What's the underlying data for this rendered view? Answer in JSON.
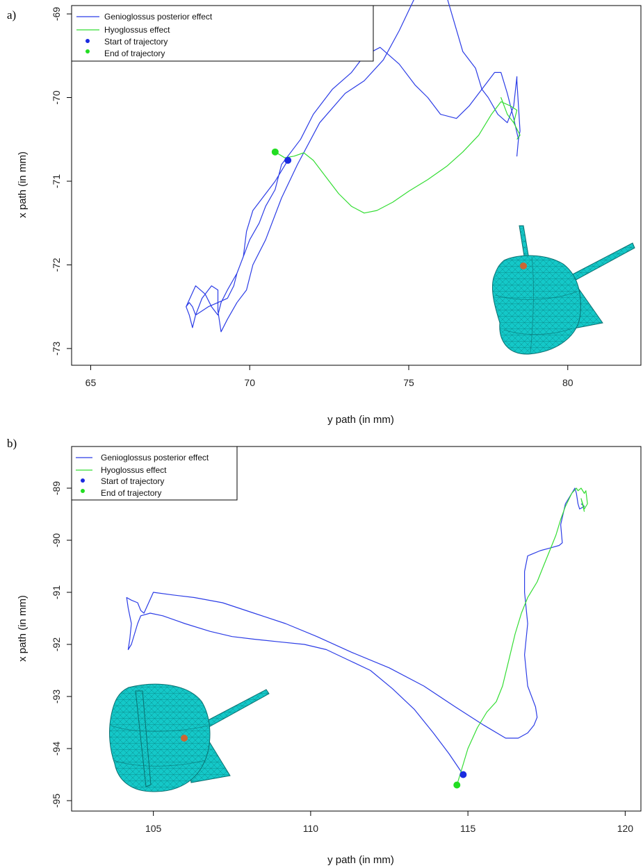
{
  "colors": {
    "genioglossus": "#2b3ce6",
    "hyoglossus": "#33dd33",
    "start": "#1a2be0",
    "end": "#22dd22",
    "mesh": "#14c8c8",
    "mesh_edge": "#0a6f70",
    "mesh_point": "#cc6633"
  },
  "icons": {
    "mesh": "tongue-mesh-icon"
  },
  "chart_data": [
    {
      "type": "line",
      "panel_label": "a)",
      "xlabel": "y path (in mm)",
      "ylabel": "x path (in mm)",
      "xlim": [
        64.4,
        82.3
      ],
      "ylim": [
        -73.2,
        -68.9
      ],
      "xticks": [
        65,
        70,
        75,
        80
      ],
      "yticks": [
        -69,
        -70,
        -71,
        -72,
        -73
      ],
      "grid": false,
      "legend_position": "top-left",
      "legend": [
        "Genioglossus posterior effect",
        "Hyoglossus effect",
        "Start of trajectory",
        "End of trajectory"
      ],
      "series": [
        {
          "name": "Genioglossus posterior effect",
          "x": [
            71.2,
            70.8,
            70.4,
            70.1,
            69.9,
            69.8,
            69.6,
            69.5,
            69.3,
            69.0,
            68.7,
            68.5,
            68.3,
            68.2,
            68.1,
            68.0,
            68.1,
            68.2,
            68.3,
            68.5,
            68.7,
            68.8,
            69.0,
            69.0,
            69.1,
            69.3,
            69.6,
            69.9,
            70.1,
            70.5,
            71.0,
            71.5,
            72.2,
            73.0,
            73.6,
            74.2,
            74.7,
            75.2,
            75.6,
            75.9,
            76.2,
            76.7,
            77.1,
            77.3,
            77.5,
            77.8,
            78.1,
            78.3,
            78.4,
            78.4,
            78.5,
            78.45,
            78.4,
            78.45,
            78.3,
            78.1,
            77.9,
            77.7,
            77.3,
            76.9,
            76.5,
            76.0,
            75.6,
            75.2,
            74.7,
            74.1,
            73.6,
            73.2,
            72.6,
            72.0,
            71.6,
            71.3,
            71.0,
            70.8,
            70.5,
            70.3,
            70.0,
            69.8,
            69.6,
            69.3,
            69.1,
            69.0,
            68.8,
            68.6,
            68.3,
            68.0
          ],
          "y": [
            -70.75,
            -71.0,
            -71.2,
            -71.35,
            -71.6,
            -71.9,
            -72.1,
            -72.25,
            -72.4,
            -72.45,
            -72.5,
            -72.55,
            -72.6,
            -72.5,
            -72.45,
            -72.5,
            -72.6,
            -72.75,
            -72.6,
            -72.4,
            -72.3,
            -72.25,
            -72.3,
            -72.55,
            -72.8,
            -72.65,
            -72.45,
            -72.3,
            -72.0,
            -71.7,
            -71.2,
            -70.8,
            -70.3,
            -69.95,
            -69.8,
            -69.55,
            -69.2,
            -68.8,
            -68.65,
            -68.7,
            -68.8,
            -69.45,
            -69.65,
            -69.9,
            -70.0,
            -70.2,
            -70.3,
            -70.1,
            -69.75,
            -69.8,
            -70.4,
            -70.5,
            -70.7,
            -70.5,
            -70.25,
            -69.95,
            -69.7,
            -69.7,
            -69.9,
            -70.1,
            -70.25,
            -70.2,
            -70.0,
            -69.85,
            -69.6,
            -69.4,
            -69.5,
            -69.7,
            -69.9,
            -70.2,
            -70.5,
            -70.65,
            -70.8,
            -71.1,
            -71.3,
            -71.5,
            -71.7,
            -71.9,
            -72.1,
            -72.3,
            -72.45,
            -72.6,
            -72.5,
            -72.35,
            -72.25,
            -72.5
          ]
        },
        {
          "name": "Hyoglossus effect",
          "x": [
            70.8,
            71.1,
            71.4,
            71.7,
            72.0,
            72.4,
            72.8,
            73.2,
            73.6,
            74.0,
            74.5,
            75.0,
            75.6,
            76.2,
            76.7,
            77.2,
            77.6,
            77.9,
            78.2,
            78.4,
            78.3,
            78.1,
            77.9,
            77.95,
            78.1,
            78.3,
            78.5,
            78.4
          ],
          "y": [
            -70.65,
            -70.72,
            -70.7,
            -70.66,
            -70.75,
            -70.95,
            -71.15,
            -71.3,
            -71.38,
            -71.35,
            -71.25,
            -71.12,
            -70.98,
            -70.82,
            -70.65,
            -70.45,
            -70.2,
            -70.05,
            -70.1,
            -70.15,
            -70.3,
            -70.2,
            -70.0,
            -70.05,
            -70.2,
            -70.3,
            -70.45,
            -70.5
          ]
        }
      ],
      "points": [
        {
          "name": "Start of trajectory",
          "x": 71.2,
          "y": -70.75
        },
        {
          "name": "End of trajectory",
          "x": 70.8,
          "y": -70.65
        }
      ]
    },
    {
      "type": "line",
      "panel_label": "b)",
      "xlabel": "y path (in mm)",
      "ylabel": "x path (in mm)",
      "xlim": [
        102.4,
        120.5
      ],
      "ylim": [
        -95.2,
        -88.2
      ],
      "xticks": [
        105,
        110,
        115,
        120
      ],
      "yticks": [
        -89,
        -90,
        -91,
        -92,
        -93,
        -94,
        -95
      ],
      "grid": false,
      "legend_position": "top-left",
      "legend": [
        "Genioglossus posterior effect",
        "Hyoglossus effect",
        "Start of trajectory",
        "End of trajectory"
      ],
      "series": [
        {
          "name": "Genioglossus posterior effect",
          "x": [
            114.85,
            114.4,
            113.9,
            113.3,
            112.6,
            111.9,
            111.2,
            110.5,
            109.8,
            109.0,
            108.2,
            107.5,
            106.8,
            106.0,
            105.3,
            104.9,
            104.6,
            104.5,
            104.4,
            104.3,
            104.2,
            104.25,
            104.3,
            104.2,
            104.15,
            104.3,
            104.5,
            104.6,
            104.7,
            105.0,
            105.6,
            106.3,
            107.2,
            108.2,
            109.2,
            110.2,
            111.3,
            112.5,
            113.6,
            114.6,
            115.5,
            116.2,
            116.6,
            116.9,
            117.1,
            117.2,
            117.15,
            116.9,
            116.8,
            116.9,
            116.8,
            116.8,
            116.9,
            117.3,
            117.6,
            117.9,
            118.0,
            117.95,
            118.1,
            118.3,
            118.4,
            118.45,
            118.5,
            118.55,
            118.7,
            118.6
          ],
          "y": [
            -94.5,
            -94.1,
            -93.7,
            -93.25,
            -92.85,
            -92.5,
            -92.3,
            -92.1,
            -92.0,
            -91.95,
            -91.9,
            -91.85,
            -91.75,
            -91.6,
            -91.45,
            -91.4,
            -91.45,
            -91.6,
            -91.8,
            -92.0,
            -92.1,
            -91.9,
            -91.6,
            -91.3,
            -91.1,
            -91.15,
            -91.2,
            -91.35,
            -91.4,
            -91.0,
            -91.05,
            -91.1,
            -91.2,
            -91.4,
            -91.6,
            -91.85,
            -92.15,
            -92.45,
            -92.8,
            -93.2,
            -93.55,
            -93.8,
            -93.8,
            -93.7,
            -93.55,
            -93.4,
            -93.2,
            -92.8,
            -92.2,
            -91.6,
            -91.0,
            -90.6,
            -90.3,
            -90.2,
            -90.15,
            -90.1,
            -90.05,
            -89.7,
            -89.3,
            -89.1,
            -89.0,
            -89.1,
            -89.3,
            -89.4,
            -89.35,
            -89.3
          ]
        },
        {
          "name": "Hyoglossus effect",
          "x": [
            114.65,
            114.8,
            115.0,
            115.3,
            115.6,
            115.9,
            116.1,
            116.3,
            116.5,
            116.7,
            116.9,
            117.2,
            117.4,
            117.6,
            117.8,
            117.95,
            118.1,
            118.3,
            118.45,
            118.5,
            118.6,
            118.7,
            118.75,
            118.8,
            118.7,
            118.6,
            118.7
          ],
          "y": [
            -94.7,
            -94.4,
            -94.0,
            -93.6,
            -93.3,
            -93.1,
            -92.8,
            -92.3,
            -91.8,
            -91.4,
            -91.1,
            -90.8,
            -90.5,
            -90.2,
            -89.9,
            -89.6,
            -89.35,
            -89.1,
            -89.0,
            -89.05,
            -89.0,
            -89.1,
            -89.05,
            -89.3,
            -89.4,
            -89.2,
            -89.45
          ]
        }
      ],
      "points": [
        {
          "name": "Start of trajectory",
          "x": 114.85,
          "y": -94.5
        },
        {
          "name": "End of trajectory",
          "x": 114.65,
          "y": -94.7
        }
      ]
    }
  ]
}
